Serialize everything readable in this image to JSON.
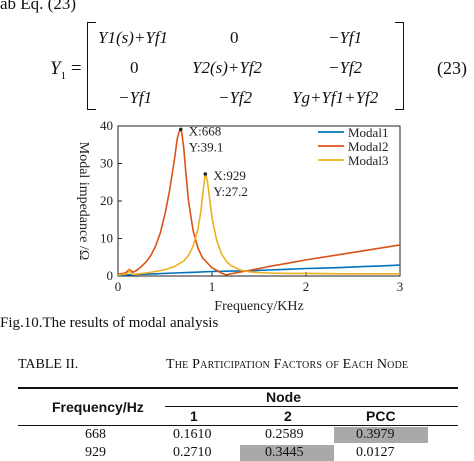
{
  "top_line": "ab Eq. (23)",
  "equation": {
    "lhs": "Y",
    "lhs_sub": "1",
    "equals": "=",
    "number": "(23)",
    "rows": [
      [
        "Y1(s)+Yf1",
        "0",
        "−Yf1"
      ],
      [
        "0",
        "Y2(s)+Yf2",
        "−Yf2"
      ],
      [
        "−Yf1",
        "−Yf2",
        "Yg+Yf1+Yf2"
      ]
    ]
  },
  "chart_data": {
    "type": "line",
    "xlabel": "Frequency/KHz",
    "ylabel": "Modal impedance /Ω",
    "xlim": [
      0,
      3
    ],
    "ylim": [
      0,
      40
    ],
    "xticks": [
      "0",
      "1",
      "2",
      "3"
    ],
    "yticks": [
      "0",
      "10",
      "20",
      "30",
      "40"
    ],
    "legend_position": "top-right",
    "series": [
      {
        "name": "Modal1",
        "color": "#0072BD",
        "x": [
          0.0,
          0.2,
          0.4,
          0.6,
          0.8,
          1.0,
          1.2,
          1.4,
          1.6,
          1.8,
          2.0,
          2.2,
          2.4,
          2.6,
          2.8,
          3.0
        ],
        "y": [
          0.2,
          0.4,
          0.6,
          0.8,
          1.0,
          1.2,
          1.3,
          1.4,
          1.6,
          1.8,
          2.0,
          2.1,
          2.3,
          2.5,
          2.7,
          2.9
        ]
      },
      {
        "name": "Modal2",
        "color": "#D95319",
        "x": [
          0.0,
          0.08,
          0.12,
          0.16,
          0.2,
          0.25,
          0.3,
          0.35,
          0.4,
          0.45,
          0.5,
          0.55,
          0.6,
          0.63,
          0.65,
          0.668,
          0.68,
          0.7,
          0.72,
          0.75,
          0.8,
          0.85,
          0.9,
          1.0,
          1.1,
          1.15,
          1.2,
          1.4,
          1.6,
          1.8,
          2.0,
          2.2,
          2.4,
          2.6,
          2.8,
          3.0
        ],
        "y": [
          0.5,
          0.8,
          1.8,
          1.0,
          1.5,
          2.6,
          3.8,
          5.5,
          8.0,
          11.5,
          16.5,
          23.0,
          31.0,
          36.5,
          38.5,
          39.1,
          38.0,
          34.0,
          28.0,
          20.0,
          12.0,
          7.5,
          4.8,
          2.2,
          0.8,
          0.3,
          0.6,
          1.5,
          2.5,
          3.4,
          4.3,
          5.1,
          5.9,
          6.7,
          7.5,
          8.3
        ]
      },
      {
        "name": "Modal3",
        "color": "#EDB120",
        "x": [
          0.0,
          0.1,
          0.12,
          0.15,
          0.2,
          0.3,
          0.4,
          0.5,
          0.6,
          0.7,
          0.75,
          0.8,
          0.85,
          0.88,
          0.91,
          0.929,
          0.95,
          0.97,
          1.0,
          1.05,
          1.1,
          1.15,
          1.2,
          1.3,
          1.4,
          1.5,
          1.6,
          1.8,
          2.0,
          2.4,
          2.8,
          3.0
        ],
        "y": [
          0.3,
          0.6,
          1.6,
          0.4,
          0.5,
          0.8,
          1.2,
          1.7,
          2.5,
          4.0,
          5.5,
          8.0,
          12.5,
          17.0,
          23.5,
          27.2,
          25.5,
          21.5,
          15.5,
          9.5,
          6.0,
          4.0,
          2.8,
          1.6,
          1.1,
          0.9,
          0.8,
          0.7,
          0.7,
          0.6,
          0.6,
          0.6
        ]
      }
    ],
    "annotations": [
      {
        "line1": "X:668",
        "line2": "Y:39.1",
        "x": 0.668,
        "y": 39.1
      },
      {
        "line1": "X:929",
        "line2": "Y:27.2",
        "x": 0.929,
        "y": 27.2
      }
    ]
  },
  "caption": "Fig.10.The results of modal analysis",
  "table": {
    "label": "TABLE II.",
    "title": "The Participation Factors of Each Node",
    "col_header": "Frequency/Hz",
    "group_header": "Node",
    "subheaders": [
      "1",
      "2",
      "PCC"
    ],
    "rows": [
      {
        "freq": "668",
        "values": [
          "0.1610",
          "0.2589",
          "0.3979"
        ],
        "highlight": 2
      },
      {
        "freq": "929",
        "values": [
          "0.2710",
          "0.3445",
          "0.0127"
        ],
        "highlight": 1
      }
    ],
    "highlight_color": "#a9a9a9"
  }
}
